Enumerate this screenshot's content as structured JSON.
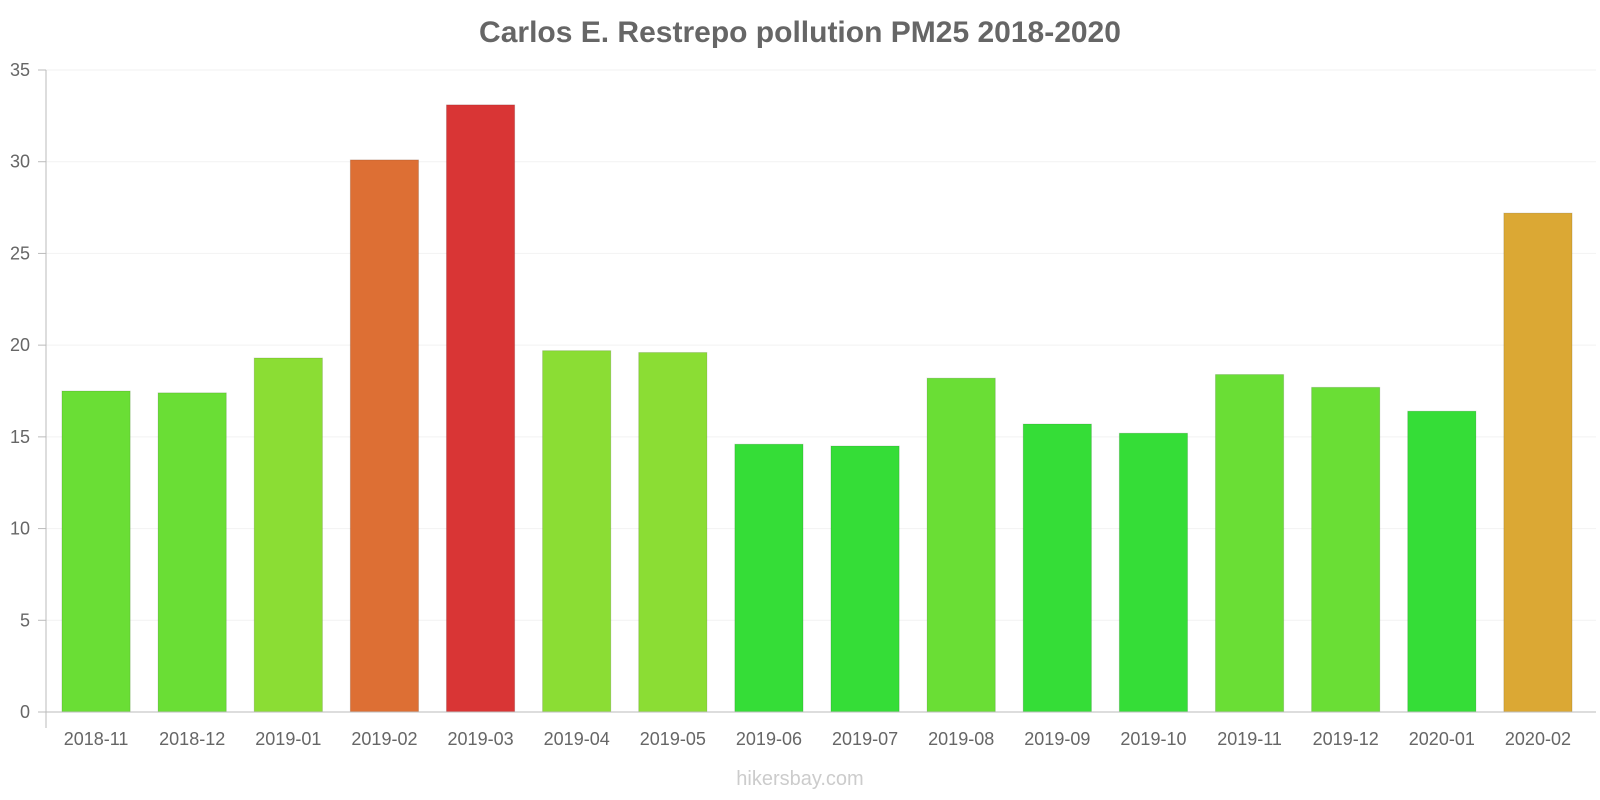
{
  "chart_data": {
    "type": "bar",
    "title": "Carlos E. Restrepo pollution PM25 2018-2020",
    "xlabel": "",
    "ylabel": "",
    "ylim": [
      0,
      35
    ],
    "yticks": [
      0,
      5,
      10,
      15,
      20,
      25,
      30,
      35
    ],
    "categories": [
      "2018-11",
      "2018-12",
      "2019-01",
      "2019-02",
      "2019-03",
      "2019-04",
      "2019-05",
      "2019-06",
      "2019-07",
      "2019-08",
      "2019-09",
      "2019-10",
      "2019-11",
      "2019-12",
      "2020-01",
      "2020-02"
    ],
    "values": [
      17.5,
      17.4,
      19.3,
      30.1,
      33.1,
      19.7,
      19.6,
      14.6,
      14.5,
      18.2,
      15.7,
      15.2,
      18.4,
      17.7,
      16.4,
      27.2
    ],
    "colors": [
      "#6ade35",
      "#6ade35",
      "#8bdd34",
      "#dd6f34",
      "#d93535",
      "#8bdd34",
      "#8bdd34",
      "#35dd37",
      "#35dd37",
      "#6ade35",
      "#35dd37",
      "#35dd37",
      "#6ade35",
      "#6ade35",
      "#35dd37",
      "#dba834"
    ],
    "grid": true,
    "legend": "none"
  },
  "footer": {
    "watermark": "hikersbay.com"
  }
}
